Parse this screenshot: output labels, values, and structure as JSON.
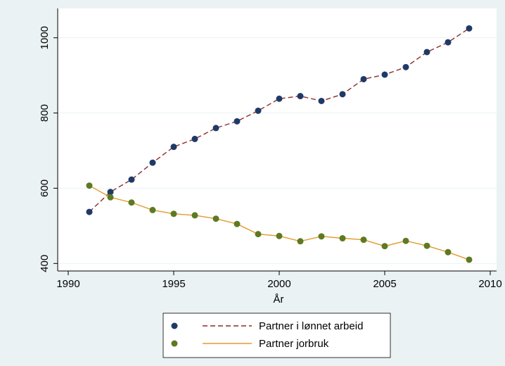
{
  "chart_data": {
    "type": "line",
    "xlabel": "År",
    "x": [
      1991,
      1992,
      1993,
      1994,
      1995,
      1996,
      1997,
      1998,
      1999,
      2000,
      2001,
      2002,
      2003,
      2004,
      2005,
      2006,
      2007,
      2008,
      2009
    ],
    "series": [
      {
        "name": "Partner i lønnet arbeid",
        "color": "#8b2c2c",
        "marker_color": "#1f3a68",
        "dash": true,
        "values": [
          537,
          590,
          623,
          668,
          710,
          731,
          760,
          778,
          806,
          838,
          845,
          832,
          850,
          890,
          902,
          922,
          962,
          988,
          1025
        ]
      },
      {
        "name": "Partner jorbruk",
        "color": "#e39a2d",
        "marker_color": "#5d7a22",
        "dash": false,
        "values": [
          607,
          576,
          562,
          542,
          532,
          528,
          519,
          505,
          478,
          473,
          459,
          472,
          467,
          463,
          446,
          460,
          447,
          430,
          410
        ]
      }
    ],
    "xlim": [
      1989.5,
      2010.3
    ],
    "ylim": [
      380,
      1078
    ],
    "xticks": [
      1990,
      1995,
      2000,
      2005,
      2010
    ],
    "yticks": [
      400,
      600,
      800,
      1000
    ],
    "grid": true
  }
}
